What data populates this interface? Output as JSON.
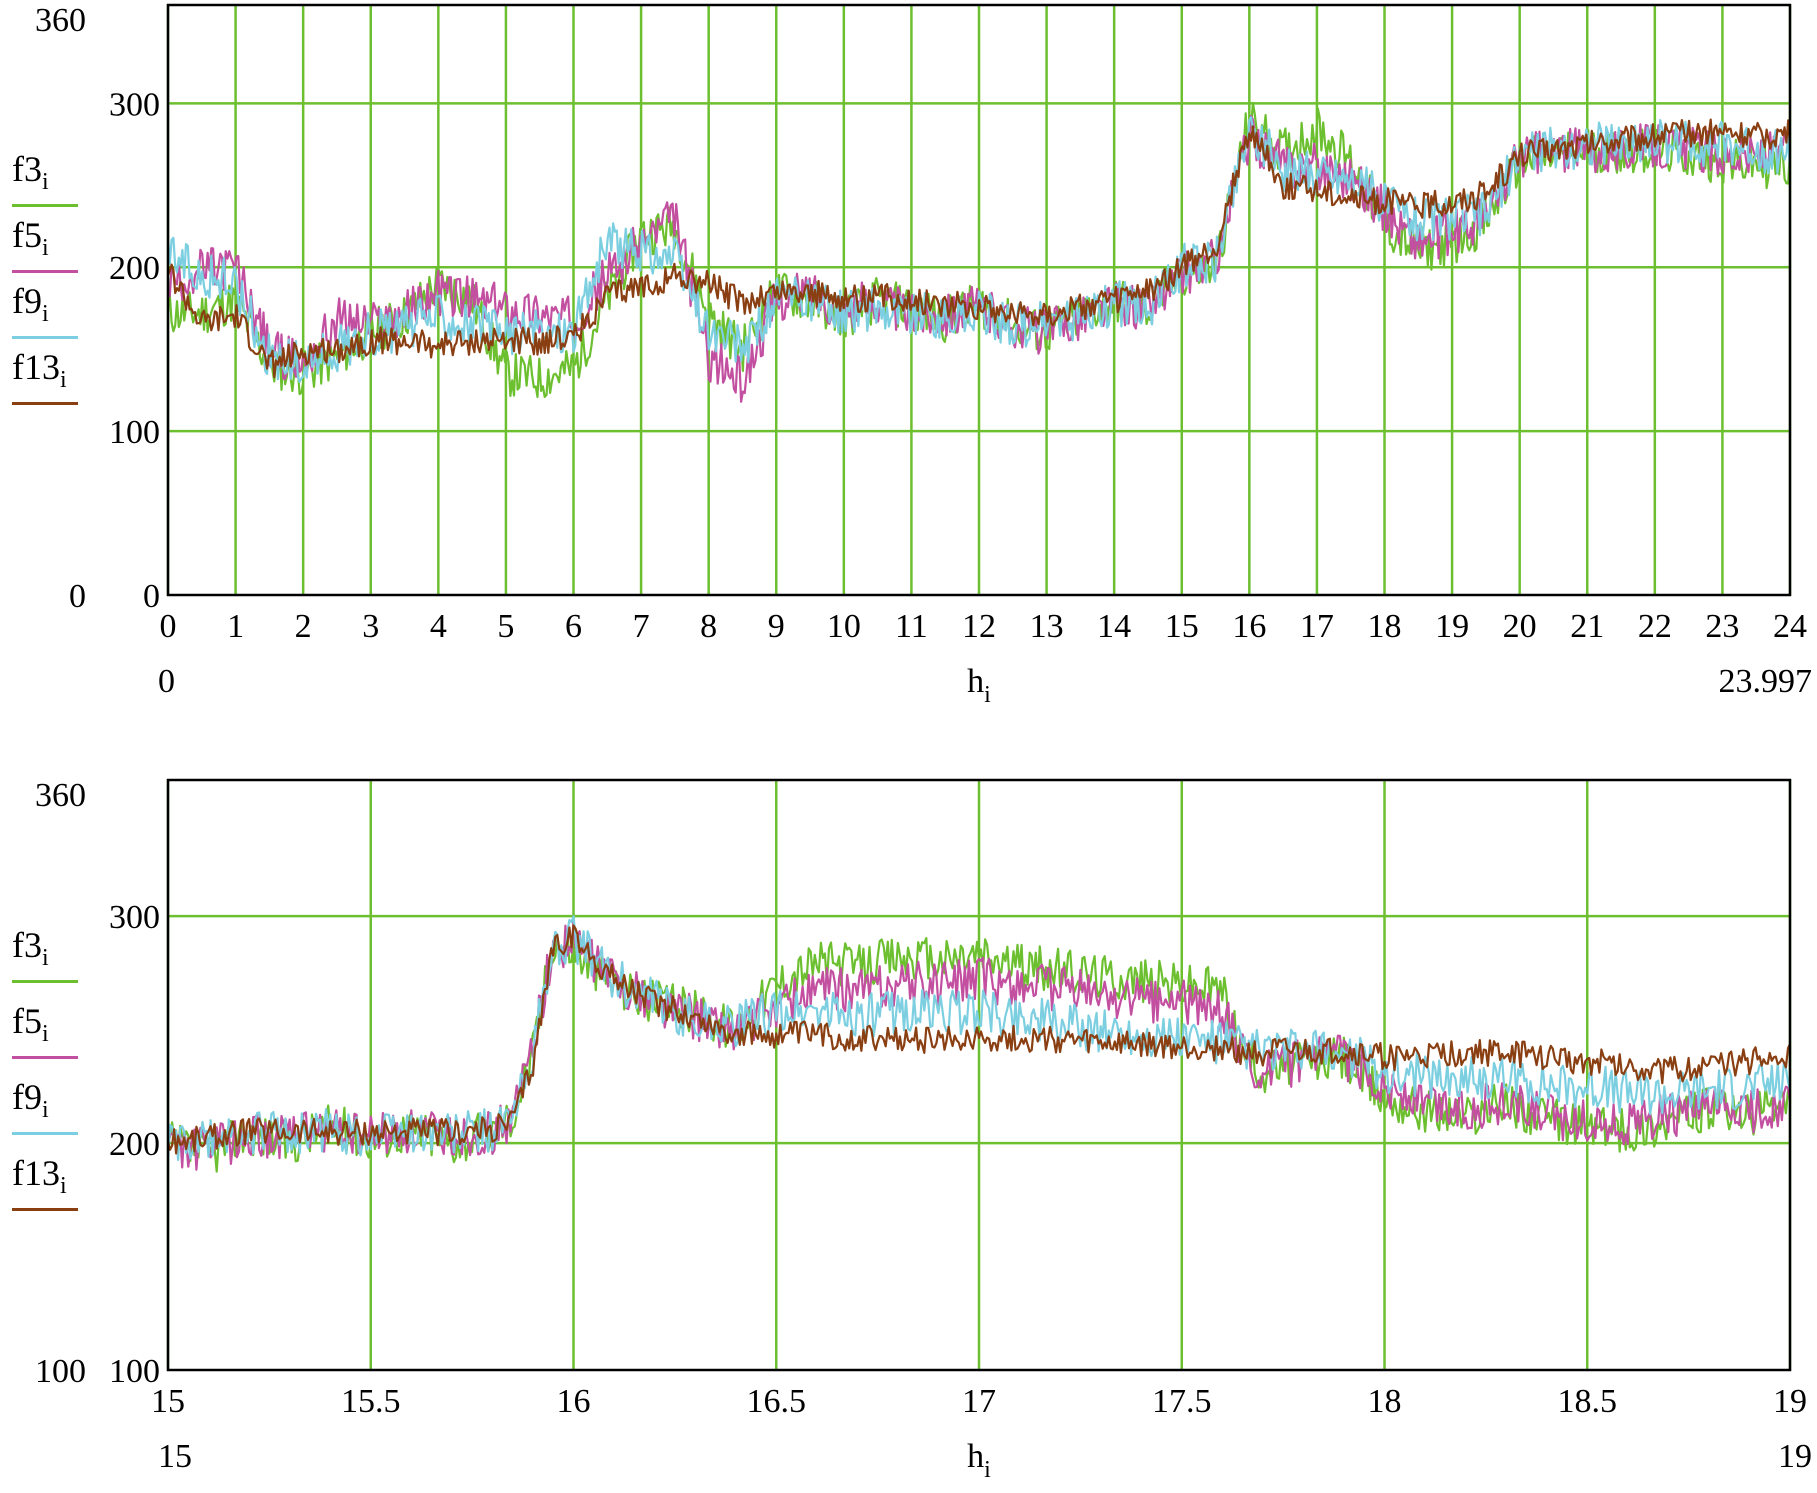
{
  "colors": {
    "grid": "#6cbf2f",
    "frame": "#000000",
    "f3": "#6cbf2f",
    "f5": "#c24fa0",
    "f9": "#7ccfe0",
    "f13": "#8a3f12"
  },
  "chart_data": [
    {
      "type": "line",
      "title": "",
      "xlabel": "h",
      "xlabel_sub": "i",
      "ylabel": "",
      "xlim": [
        0,
        24
      ],
      "ylim": [
        0,
        360
      ],
      "x_ticks": [
        "0",
        "1",
        "2",
        "3",
        "4",
        "5",
        "6",
        "7",
        "8",
        "9",
        "10",
        "11",
        "12",
        "13",
        "14",
        "15",
        "16",
        "17",
        "18",
        "19",
        "20",
        "21",
        "22",
        "23",
        "24"
      ],
      "x_range_left": "0",
      "x_range_right": "23.997",
      "y_ticks": [
        "100",
        "200",
        "300"
      ],
      "y_top_label": "360",
      "y_bottom_outer": "0",
      "y_bottom_inner": "0",
      "grid": true,
      "legend": "left",
      "series": [
        {
          "name": "f3",
          "sub": "i",
          "color": "#6cbf2f",
          "x": [
            0,
            0.5,
            1,
            1.5,
            2,
            2.5,
            3,
            3.5,
            4,
            4.5,
            5,
            5.5,
            6,
            6.5,
            7,
            7.5,
            8,
            8.5,
            9,
            9.5,
            10,
            10.5,
            11,
            11.5,
            12,
            12.5,
            13,
            13.5,
            14,
            14.5,
            15,
            15.5,
            16,
            16.5,
            17,
            17.5,
            18,
            18.5,
            19,
            19.5,
            20,
            20.5,
            21,
            21.5,
            22,
            22.5,
            23,
            23.5,
            24
          ],
          "values": [
            172,
            172,
            180,
            140,
            135,
            145,
            160,
            170,
            190,
            180,
            135,
            132,
            138,
            180,
            220,
            225,
            170,
            150,
            185,
            180,
            170,
            180,
            175,
            168,
            178,
            165,
            160,
            170,
            180,
            175,
            195,
            200,
            290,
            270,
            285,
            265,
            225,
            210,
            215,
            228,
            265,
            268,
            272,
            270,
            272,
            268,
            265,
            262,
            262
          ]
        },
        {
          "name": "f5",
          "sub": "i",
          "color": "#c24fa0",
          "x": [
            0,
            0.5,
            1,
            1.5,
            2,
            2.5,
            3,
            3.5,
            4,
            4.5,
            5,
            5.5,
            6,
            6.5,
            7,
            7.5,
            8,
            8.5,
            9,
            9.5,
            10,
            10.5,
            11,
            11.5,
            12,
            12.5,
            13,
            13.5,
            14,
            14.5,
            15,
            15.5,
            16,
            16.5,
            17,
            17.5,
            18,
            18.5,
            19,
            19.5,
            20,
            20.5,
            21,
            21.5,
            22,
            22.5,
            23,
            23.5,
            24
          ],
          "values": [
            190,
            198,
            200,
            150,
            140,
            168,
            165,
            172,
            185,
            180,
            175,
            172,
            168,
            195,
            215,
            230,
            145,
            130,
            180,
            185,
            175,
            180,
            170,
            172,
            175,
            165,
            160,
            170,
            178,
            175,
            195,
            205,
            280,
            262,
            262,
            255,
            235,
            215,
            220,
            230,
            268,
            270,
            272,
            272,
            275,
            272,
            270,
            268,
            270
          ]
        },
        {
          "name": "f9",
          "sub": "i",
          "color": "#7ccfe0",
          "x": [
            0,
            0.5,
            1,
            1.5,
            2,
            2.5,
            3,
            3.5,
            4,
            4.5,
            5,
            5.5,
            6,
            6.5,
            7,
            7.5,
            8,
            8.5,
            9,
            9.5,
            10,
            10.5,
            11,
            11.5,
            12,
            12.5,
            13,
            13.5,
            14,
            14.5,
            15,
            15.5,
            16,
            16.5,
            17,
            17.5,
            18,
            18.5,
            19,
            19.5,
            20,
            20.5,
            21,
            21.5,
            22,
            22.5,
            23,
            23.5,
            24
          ],
          "values": [
            210,
            195,
            190,
            145,
            140,
            150,
            160,
            162,
            172,
            165,
            160,
            160,
            162,
            215,
            210,
            205,
            160,
            150,
            180,
            180,
            172,
            176,
            172,
            168,
            172,
            165,
            165,
            170,
            178,
            175,
            200,
            205,
            285,
            260,
            258,
            255,
            240,
            230,
            230,
            232,
            270,
            272,
            275,
            275,
            278,
            276,
            275,
            272,
            270
          ]
        },
        {
          "name": "f13",
          "sub": "i",
          "color": "#8a3f12",
          "x": [
            0,
            0.5,
            1,
            1.5,
            2,
            2.5,
            3,
            3.5,
            4,
            4.5,
            5,
            5.5,
            6,
            6.5,
            7,
            7.5,
            8,
            8.5,
            9,
            9.5,
            10,
            10.5,
            11,
            11.5,
            12,
            12.5,
            13,
            13.5,
            14,
            14.5,
            15,
            15.5,
            16,
            16.5,
            17,
            17.5,
            18,
            18.5,
            19,
            19.5,
            20,
            20.5,
            21,
            21.5,
            22,
            22.5,
            23,
            23.5,
            24
          ],
          "values": [
            198,
            165,
            170,
            140,
            148,
            150,
            155,
            155,
            152,
            155,
            155,
            155,
            158,
            182,
            188,
            195,
            190,
            178,
            185,
            185,
            180,
            182,
            180,
            178,
            176,
            172,
            172,
            175,
            180,
            185,
            200,
            210,
            285,
            250,
            248,
            243,
            240,
            238,
            240,
            245,
            268,
            272,
            275,
            278,
            280,
            282,
            283,
            280,
            282
          ]
        }
      ]
    },
    {
      "type": "line",
      "title": "",
      "xlabel": "h",
      "xlabel_sub": "i",
      "ylabel": "",
      "xlim": [
        15,
        19
      ],
      "ylim": [
        100,
        360
      ],
      "x_ticks": [
        "15",
        "15.5",
        "16",
        "16.5",
        "17",
        "17.5",
        "18",
        "18.5",
        "19"
      ],
      "x_range_left": "15",
      "x_range_right": "19",
      "y_ticks": [
        "200",
        "300"
      ],
      "y_top_label": "360",
      "y_bottom_outer": "100",
      "y_bottom_inner": "100",
      "grid": true,
      "legend": "left",
      "series": [
        {
          "name": "f3",
          "sub": "i",
          "color": "#6cbf2f",
          "x": [
            15,
            15.1,
            15.2,
            15.3,
            15.4,
            15.5,
            15.6,
            15.7,
            15.8,
            15.85,
            15.9,
            15.95,
            16,
            16.1,
            16.2,
            16.3,
            16.4,
            16.5,
            16.6,
            16.7,
            16.8,
            16.9,
            17,
            17.1,
            17.2,
            17.3,
            17.4,
            17.5,
            17.6,
            17.65,
            17.7,
            17.8,
            17.9,
            18,
            18.1,
            18.2,
            18.3,
            18.4,
            18.5,
            18.6,
            18.7,
            18.8,
            18.9,
            19
          ],
          "values": [
            200,
            195,
            205,
            200,
            208,
            202,
            206,
            200,
            205,
            212,
            240,
            290,
            285,
            270,
            262,
            258,
            250,
            270,
            280,
            278,
            282,
            280,
            283,
            278,
            276,
            274,
            272,
            270,
            268,
            240,
            232,
            235,
            238,
            220,
            215,
            212,
            218,
            210,
            208,
            205,
            210,
            215,
            212,
            220
          ]
        },
        {
          "name": "f5",
          "sub": "i",
          "color": "#c24fa0",
          "x": [
            15,
            15.1,
            15.2,
            15.3,
            15.4,
            15.5,
            15.6,
            15.7,
            15.8,
            15.85,
            15.9,
            15.95,
            16,
            16.1,
            16.2,
            16.3,
            16.4,
            16.5,
            16.6,
            16.7,
            16.8,
            16.9,
            17,
            17.1,
            17.2,
            17.3,
            17.4,
            17.5,
            17.6,
            17.65,
            17.7,
            17.8,
            17.9,
            18,
            18.1,
            18.2,
            18.3,
            18.4,
            18.5,
            18.6,
            18.7,
            18.8,
            18.9,
            19
          ],
          "values": [
            198,
            198,
            203,
            203,
            205,
            203,
            205,
            203,
            205,
            210,
            245,
            285,
            288,
            272,
            262,
            255,
            250,
            260,
            268,
            268,
            270,
            270,
            272,
            270,
            268,
            265,
            263,
            262,
            258,
            238,
            232,
            236,
            238,
            225,
            218,
            215,
            218,
            212,
            210,
            208,
            212,
            215,
            214,
            218
          ]
        },
        {
          "name": "f9",
          "sub": "i",
          "color": "#7ccfe0",
          "x": [
            15,
            15.1,
            15.2,
            15.3,
            15.4,
            15.5,
            15.6,
            15.7,
            15.8,
            15.85,
            15.9,
            15.95,
            16,
            16.1,
            16.2,
            16.3,
            16.4,
            16.5,
            16.6,
            16.7,
            16.8,
            16.9,
            17,
            17.1,
            17.2,
            17.3,
            17.4,
            17.5,
            17.6,
            17.65,
            17.7,
            17.8,
            17.9,
            18,
            18.1,
            18.2,
            18.3,
            18.4,
            18.5,
            18.6,
            18.7,
            18.8,
            18.9,
            19
          ],
          "values": [
            200,
            200,
            204,
            204,
            206,
            204,
            206,
            204,
            206,
            210,
            240,
            285,
            290,
            272,
            262,
            255,
            252,
            258,
            258,
            256,
            258,
            258,
            258,
            256,
            252,
            250,
            248,
            246,
            244,
            242,
            240,
            240,
            240,
            232,
            230,
            228,
            228,
            226,
            225,
            222,
            222,
            224,
            225,
            228
          ]
        },
        {
          "name": "f13",
          "sub": "i",
          "color": "#8a3f12",
          "x": [
            15,
            15.1,
            15.2,
            15.3,
            15.4,
            15.5,
            15.6,
            15.7,
            15.8,
            15.85,
            15.9,
            15.95,
            16,
            16.1,
            16.2,
            16.3,
            16.4,
            16.5,
            16.6,
            16.7,
            16.8,
            16.9,
            17,
            17.1,
            17.2,
            17.3,
            17.4,
            17.5,
            17.6,
            17.65,
            17.7,
            17.8,
            17.9,
            18,
            18.1,
            18.2,
            18.3,
            18.4,
            18.5,
            18.6,
            18.7,
            18.8,
            18.9,
            19
          ],
          "values": [
            200,
            202,
            205,
            205,
            205,
            205,
            205,
            205,
            206,
            210,
            235,
            288,
            290,
            272,
            262,
            255,
            248,
            248,
            248,
            246,
            245,
            245,
            247,
            246,
            245,
            244,
            243,
            242,
            242,
            240,
            240,
            240,
            240,
            238,
            238,
            240,
            240,
            238,
            236,
            234,
            232,
            234,
            236,
            238
          ]
        }
      ]
    }
  ]
}
